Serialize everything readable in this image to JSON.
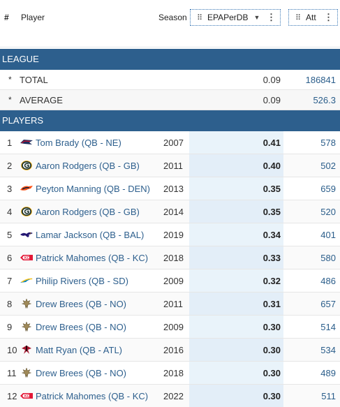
{
  "header": {
    "index_label": "#",
    "player_label": "Player",
    "season_label": "Season",
    "epa_label": "EPAPerDB",
    "att_label": "Att"
  },
  "league": {
    "title": "LEAGUE",
    "rows": [
      {
        "marker": "*",
        "label": "TOTAL",
        "epa": "0.09",
        "att": "186841"
      },
      {
        "marker": "*",
        "label": "AVERAGE",
        "epa": "0.09",
        "att": "526.3"
      }
    ]
  },
  "players": {
    "title": "PLAYERS",
    "rows": [
      {
        "rank": "1",
        "name": "Tom Brady (QB - NE)",
        "team": "NE",
        "logo": "patriots-logo-icon",
        "season": "2007",
        "epa": "0.41",
        "att": "578"
      },
      {
        "rank": "2",
        "name": "Aaron Rodgers (QB - GB)",
        "team": "GB",
        "logo": "packers-logo-icon",
        "season": "2011",
        "epa": "0.40",
        "att": "502"
      },
      {
        "rank": "3",
        "name": "Peyton Manning (QB - DEN)",
        "team": "DEN",
        "logo": "broncos-logo-icon",
        "season": "2013",
        "epa": "0.35",
        "att": "659"
      },
      {
        "rank": "4",
        "name": "Aaron Rodgers (QB - GB)",
        "team": "GB",
        "logo": "packers-logo-icon",
        "season": "2014",
        "epa": "0.35",
        "att": "520"
      },
      {
        "rank": "5",
        "name": "Lamar Jackson (QB - BAL)",
        "team": "BAL",
        "logo": "ravens-logo-icon",
        "season": "2019",
        "epa": "0.34",
        "att": "401"
      },
      {
        "rank": "6",
        "name": "Patrick Mahomes (QB - KC)",
        "team": "KC",
        "logo": "chiefs-logo-icon",
        "season": "2018",
        "epa": "0.33",
        "att": "580"
      },
      {
        "rank": "7",
        "name": "Philip Rivers (QB - SD)",
        "team": "SD",
        "logo": "chargers-logo-icon",
        "season": "2009",
        "epa": "0.32",
        "att": "486"
      },
      {
        "rank": "8",
        "name": "Drew Brees (QB - NO)",
        "team": "NO",
        "logo": "saints-logo-icon",
        "season": "2011",
        "epa": "0.31",
        "att": "657"
      },
      {
        "rank": "9",
        "name": "Drew Brees (QB - NO)",
        "team": "NO",
        "logo": "saints-logo-icon",
        "season": "2009",
        "epa": "0.30",
        "att": "514"
      },
      {
        "rank": "10",
        "name": "Matt Ryan (QB - ATL)",
        "team": "ATL",
        "logo": "falcons-logo-icon",
        "season": "2016",
        "epa": "0.30",
        "att": "534"
      },
      {
        "rank": "11",
        "name": "Drew Brees (QB - NO)",
        "team": "NO",
        "logo": "saints-logo-icon",
        "season": "2018",
        "epa": "0.30",
        "att": "489"
      },
      {
        "rank": "12",
        "name": "Patrick Mahomes (QB - KC)",
        "team": "KC",
        "logo": "chiefs-logo-icon",
        "season": "2022",
        "epa": "0.30",
        "att": "511"
      }
    ]
  },
  "colors": {
    "section_bg": "#2d5f8d",
    "link": "#2d5f8d",
    "epa_col_bg": "#e9f3fa"
  }
}
